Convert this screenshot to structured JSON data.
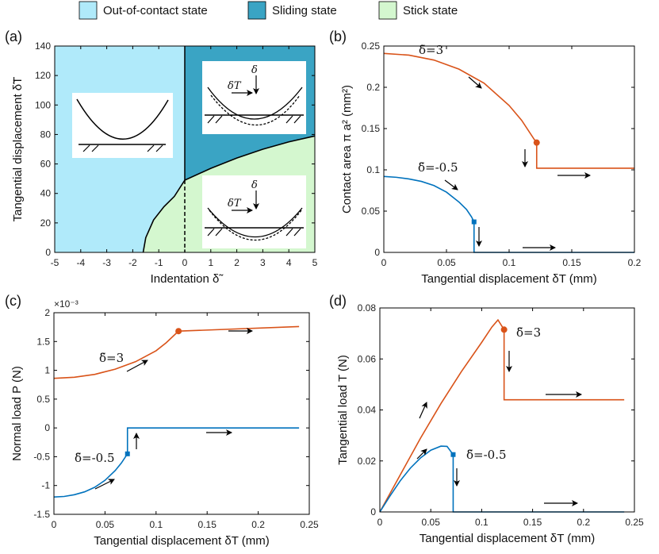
{
  "legend": {
    "placement": "top-center",
    "items": [
      {
        "label": "Out-of-contact state",
        "color": "#b0eafa"
      },
      {
        "label": "Sliding state",
        "color": "#3aa4c4"
      },
      {
        "label": "Stick state",
        "color": "#d4f7cf"
      }
    ]
  },
  "colors": {
    "orange": "#d95319",
    "blue": "#0072bd"
  },
  "chart_data": [
    {
      "panel": "(a)",
      "type": "area",
      "xlabel": "Indentation δ̃",
      "ylabel": "Tangential displacement δ̃T",
      "xlim": [
        -5,
        5
      ],
      "ylim": [
        0,
        140
      ],
      "xticks": [
        -5,
        -4,
        -3,
        -2,
        -1,
        0,
        1,
        2,
        3,
        4,
        5
      ],
      "yticks": [
        0,
        20,
        40,
        60,
        80,
        100,
        120,
        140
      ],
      "boundary": {
        "x": [
          -1.6,
          -1.5,
          -1.2,
          -0.8,
          -0.4,
          0,
          1,
          2,
          3,
          4,
          5
        ],
        "y": [
          0,
          10,
          22,
          31,
          38,
          49,
          57,
          64,
          70,
          75,
          79
        ]
      },
      "dashed_line": {
        "x": 0,
        "y": [
          0,
          49
        ]
      },
      "inset_labels": {
        "delta": "δ",
        "delta_t": "δT"
      }
    },
    {
      "panel": "(b)",
      "type": "line",
      "xlabel": "Tangential displacement δT (mm)",
      "ylabel": "Contact area π a² (mm²)",
      "xlim": [
        0,
        0.2
      ],
      "ylim": [
        0,
        0.25
      ],
      "xticks": [
        0,
        0.05,
        0.1,
        0.15,
        0.2
      ],
      "yticks": [
        0,
        0.05,
        0.1,
        0.15,
        0.2,
        0.25
      ],
      "series": [
        {
          "label": "δ̃=3",
          "color": "#d95319",
          "marker": "circle",
          "x": [
            0,
            0.02,
            0.04,
            0.06,
            0.08,
            0.1,
            0.11,
            0.12,
            0.122,
            0.122,
            0.2
          ],
          "y": [
            0.241,
            0.239,
            0.233,
            0.222,
            0.205,
            0.178,
            0.16,
            0.137,
            0.133,
            0.102,
            0.102
          ],
          "marker_at": [
            0.122,
            0.133
          ]
        },
        {
          "label": "δ̃=-0.5",
          "color": "#0072bd",
          "marker": "square",
          "x": [
            0,
            0.01,
            0.02,
            0.03,
            0.04,
            0.05,
            0.06,
            0.066,
            0.07,
            0.072,
            0.072,
            0.2
          ],
          "y": [
            0.092,
            0.091,
            0.089,
            0.086,
            0.081,
            0.073,
            0.061,
            0.052,
            0.043,
            0.037,
            0,
            0
          ],
          "marker_at": [
            0.072,
            0.037
          ]
        }
      ]
    },
    {
      "panel": "(c)",
      "type": "line",
      "xlabel": "Tangential displacement δT (mm)",
      "ylabel": "Normal load P (N)",
      "multiplier": "×10⁻³",
      "xlim": [
        0,
        0.25
      ],
      "ylim": [
        -1.5,
        2
      ],
      "xticks": [
        0,
        0.05,
        0.1,
        0.15,
        0.2,
        0.25
      ],
      "yticks": [
        -1.5,
        -1,
        -0.5,
        0,
        0.5,
        1,
        1.5,
        2
      ],
      "series": [
        {
          "label": "δ̃=3",
          "color": "#d95319",
          "marker": "circle",
          "x": [
            0,
            0.02,
            0.04,
            0.06,
            0.08,
            0.1,
            0.11,
            0.122,
            0.24
          ],
          "y": [
            0.86,
            0.88,
            0.93,
            1.02,
            1.15,
            1.34,
            1.48,
            1.68,
            1.76
          ],
          "marker_at": [
            0.122,
            1.68
          ]
        },
        {
          "label": "δ̃=-0.5",
          "color": "#0072bd",
          "marker": "square",
          "x": [
            0,
            0.01,
            0.02,
            0.03,
            0.04,
            0.05,
            0.06,
            0.066,
            0.072,
            0.072,
            0.24
          ],
          "y": [
            -1.2,
            -1.19,
            -1.16,
            -1.11,
            -1.03,
            -0.91,
            -0.74,
            -0.61,
            -0.45,
            0,
            0
          ],
          "marker_at": [
            0.072,
            -0.45
          ]
        }
      ]
    },
    {
      "panel": "(d)",
      "type": "line",
      "xlabel": "Tangential displacement δT (mm)",
      "ylabel": "Tangential load T (N)",
      "xlim": [
        0,
        0.25
      ],
      "ylim": [
        0,
        0.08
      ],
      "xticks": [
        0,
        0.05,
        0.1,
        0.15,
        0.2,
        0.25
      ],
      "yticks": [
        0,
        0.02,
        0.04,
        0.06,
        0.08
      ],
      "series": [
        {
          "label": "δ̃=3",
          "color": "#d95319",
          "marker": "circle",
          "x": [
            0,
            0.02,
            0.04,
            0.06,
            0.08,
            0.1,
            0.11,
            0.116,
            0.122,
            0.122,
            0.24
          ],
          "y": [
            0,
            0.0145,
            0.029,
            0.0425,
            0.055,
            0.0665,
            0.0725,
            0.0753,
            0.0715,
            0.044,
            0.044
          ],
          "marker_at": [
            0.122,
            0.0715
          ]
        },
        {
          "label": "δ̃=-0.5",
          "color": "#0072bd",
          "marker": "square",
          "x": [
            0,
            0.01,
            0.02,
            0.03,
            0.04,
            0.05,
            0.06,
            0.066,
            0.072,
            0.072,
            0.24
          ],
          "y": [
            0,
            0.0063,
            0.0122,
            0.0172,
            0.0212,
            0.0242,
            0.0258,
            0.0257,
            0.0225,
            0,
            0
          ],
          "marker_at": [
            0.072,
            0.0225
          ]
        }
      ]
    }
  ]
}
